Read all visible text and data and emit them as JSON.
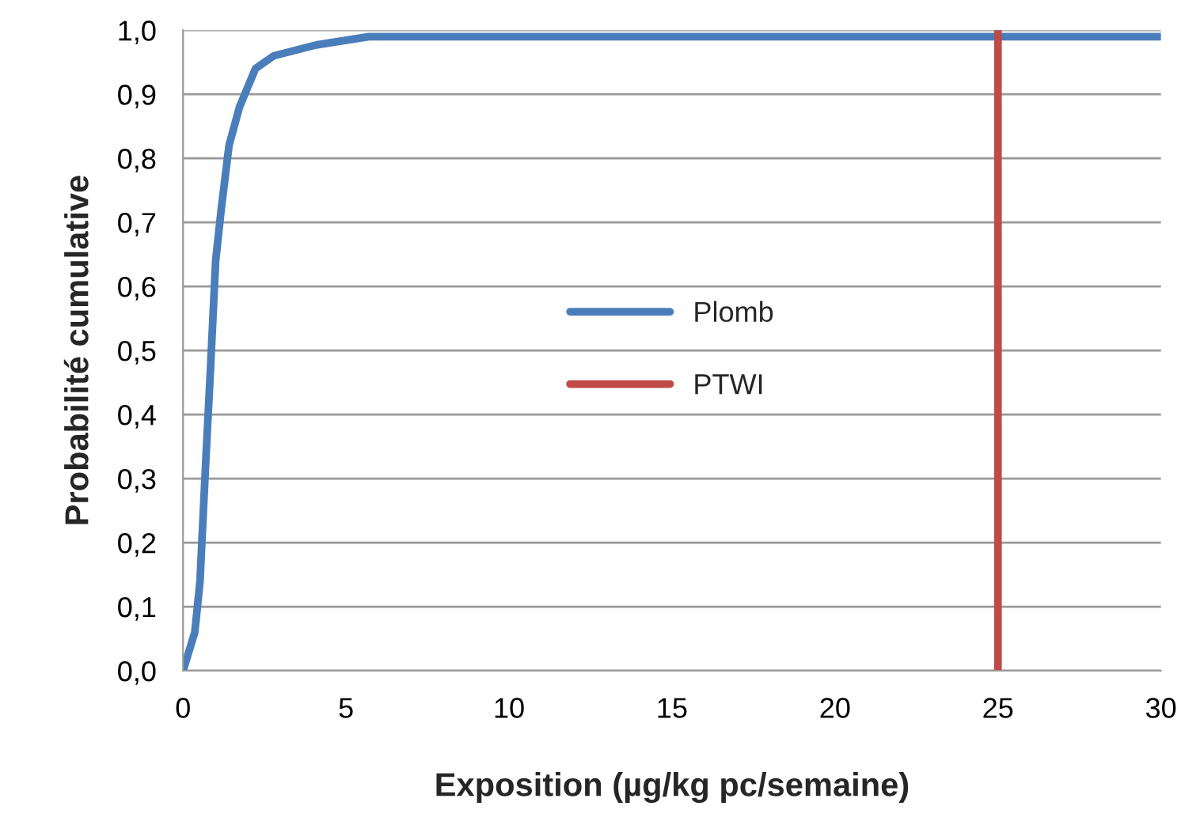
{
  "chart_data": {
    "type": "line",
    "xlabel": "Exposition (µg/kg pc/semaine)",
    "ylabel": "Probabilité cumulative",
    "x": [
      0,
      0.36,
      0.52,
      0.68,
      0.84,
      1.0,
      1.17,
      1.41,
      1.73,
      2.22,
      2.78,
      4.08,
      5.7,
      10,
      20,
      30
    ],
    "series": [
      {
        "name": "Plomb",
        "color": "#4a7ebb",
        "values": [
          0,
          0.06,
          0.14,
          0.31,
          0.47,
          0.64,
          0.72,
          0.82,
          0.88,
          0.94,
          0.96,
          0.977,
          0.99,
          0.99,
          0.99,
          0.99
        ]
      },
      {
        "name": "PTWI",
        "color": "#be4b48",
        "x": [
          25,
          25
        ],
        "values": [
          0,
          1
        ]
      }
    ],
    "xlim": [
      0,
      30
    ],
    "xticks": [
      0,
      5,
      10,
      15,
      20,
      25,
      30
    ],
    "ylim": [
      0,
      1
    ],
    "yticks": [
      {
        "value": 0,
        "label": "0,0"
      },
      {
        "value": 0.1,
        "label": "0,1"
      },
      {
        "value": 0.2,
        "label": "0,2"
      },
      {
        "value": 0.3,
        "label": "0,3"
      },
      {
        "value": 0.4,
        "label": "0,4"
      },
      {
        "value": 0.5,
        "label": "0,5"
      },
      {
        "value": 0.6,
        "label": "0,6"
      },
      {
        "value": 0.7,
        "label": "0,7"
      },
      {
        "value": 0.8,
        "label": "0,8"
      },
      {
        "value": 0.9,
        "label": "0,9"
      },
      {
        "value": 1,
        "label": "1,0"
      }
    ],
    "grid": "y",
    "legend": "center",
    "marker": "none",
    "line_style": "solid"
  }
}
